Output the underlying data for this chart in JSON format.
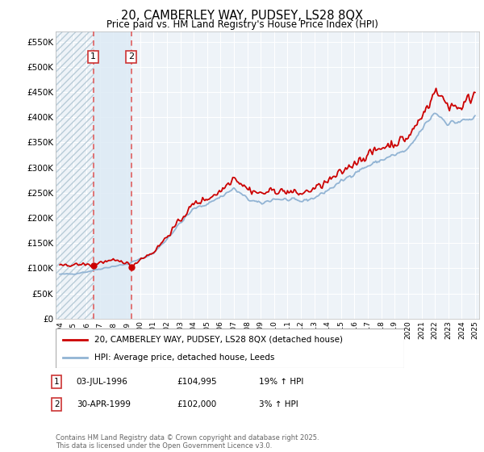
{
  "title": "20, CAMBERLEY WAY, PUDSEY, LS28 8QX",
  "subtitle": "Price paid vs. HM Land Registry's House Price Index (HPI)",
  "ylabel_ticks": [
    "£0",
    "£50K",
    "£100K",
    "£150K",
    "£200K",
    "£250K",
    "£300K",
    "£350K",
    "£400K",
    "£450K",
    "£500K",
    "£550K"
  ],
  "ytick_vals": [
    0,
    50000,
    100000,
    150000,
    200000,
    250000,
    300000,
    350000,
    400000,
    450000,
    500000,
    550000
  ],
  "ylim": [
    0,
    570000
  ],
  "xlim_start": 1993.7,
  "xlim_end": 2025.3,
  "sale1_x": 1996.5,
  "sale1_y": 104995,
  "sale1_label": "1",
  "sale2_x": 1999.33,
  "sale2_y": 102000,
  "sale2_label": "2",
  "legend_line1": "20, CAMBERLEY WAY, PUDSEY, LS28 8QX (detached house)",
  "legend_line2": "HPI: Average price, detached house, Leeds",
  "table_rows": [
    {
      "num": "1",
      "date": "03-JUL-1996",
      "price": "£104,995",
      "hpi": "19% ↑ HPI"
    },
    {
      "num": "2",
      "date": "30-APR-1999",
      "price": "£102,000",
      "hpi": "3% ↑ HPI"
    }
  ],
  "footer": "Contains HM Land Registry data © Crown copyright and database right 2025.\nThis data is licensed under the Open Government Licence v3.0.",
  "hpi_color": "#92b4d4",
  "price_color": "#cc0000",
  "sale_dot_color": "#cc0000",
  "vline_color": "#e06060",
  "background_chart": "#eef3f8",
  "background_fig": "#ffffff",
  "grid_color": "#ffffff",
  "between_fill_color": "#ddeaf5"
}
